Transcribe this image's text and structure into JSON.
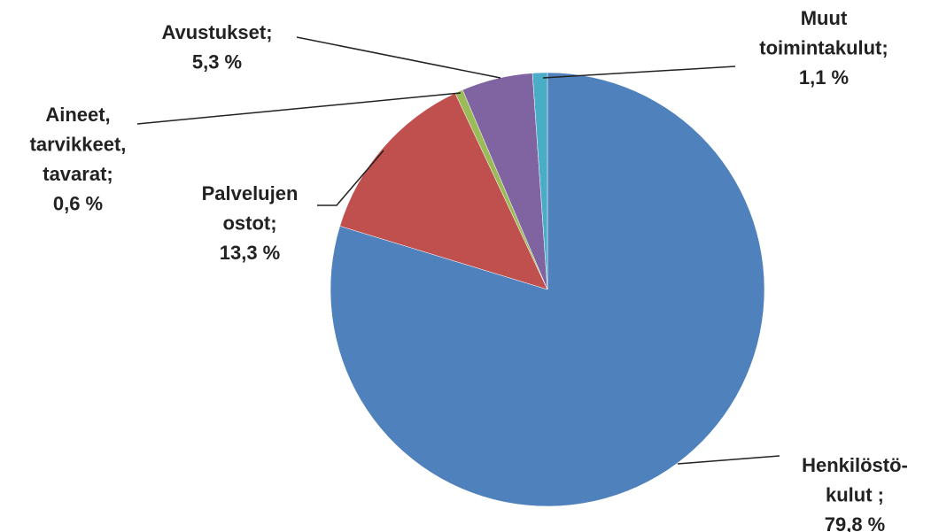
{
  "chart_data": {
    "type": "pie",
    "categories": [
      [
        "Henkilöstö-",
        "kulut ;"
      ],
      [
        "Palvelujen",
        "ostot;"
      ],
      [
        "Aineet,",
        "tarvikkeet,",
        "tavarat;"
      ],
      [
        "Avustukset;"
      ],
      [
        "Muut",
        "toimintakulut;"
      ]
    ],
    "values": [
      79.8,
      13.3,
      0.6,
      5.3,
      1.1
    ],
    "value_labels": [
      "79,8 %",
      "13,3 %",
      "0,6 %",
      "5,3 %",
      "1,1 %"
    ],
    "colors": [
      "#4f81bd",
      "#c0504d",
      "#9bbb59",
      "#8064a2",
      "#4bacc6"
    ]
  }
}
